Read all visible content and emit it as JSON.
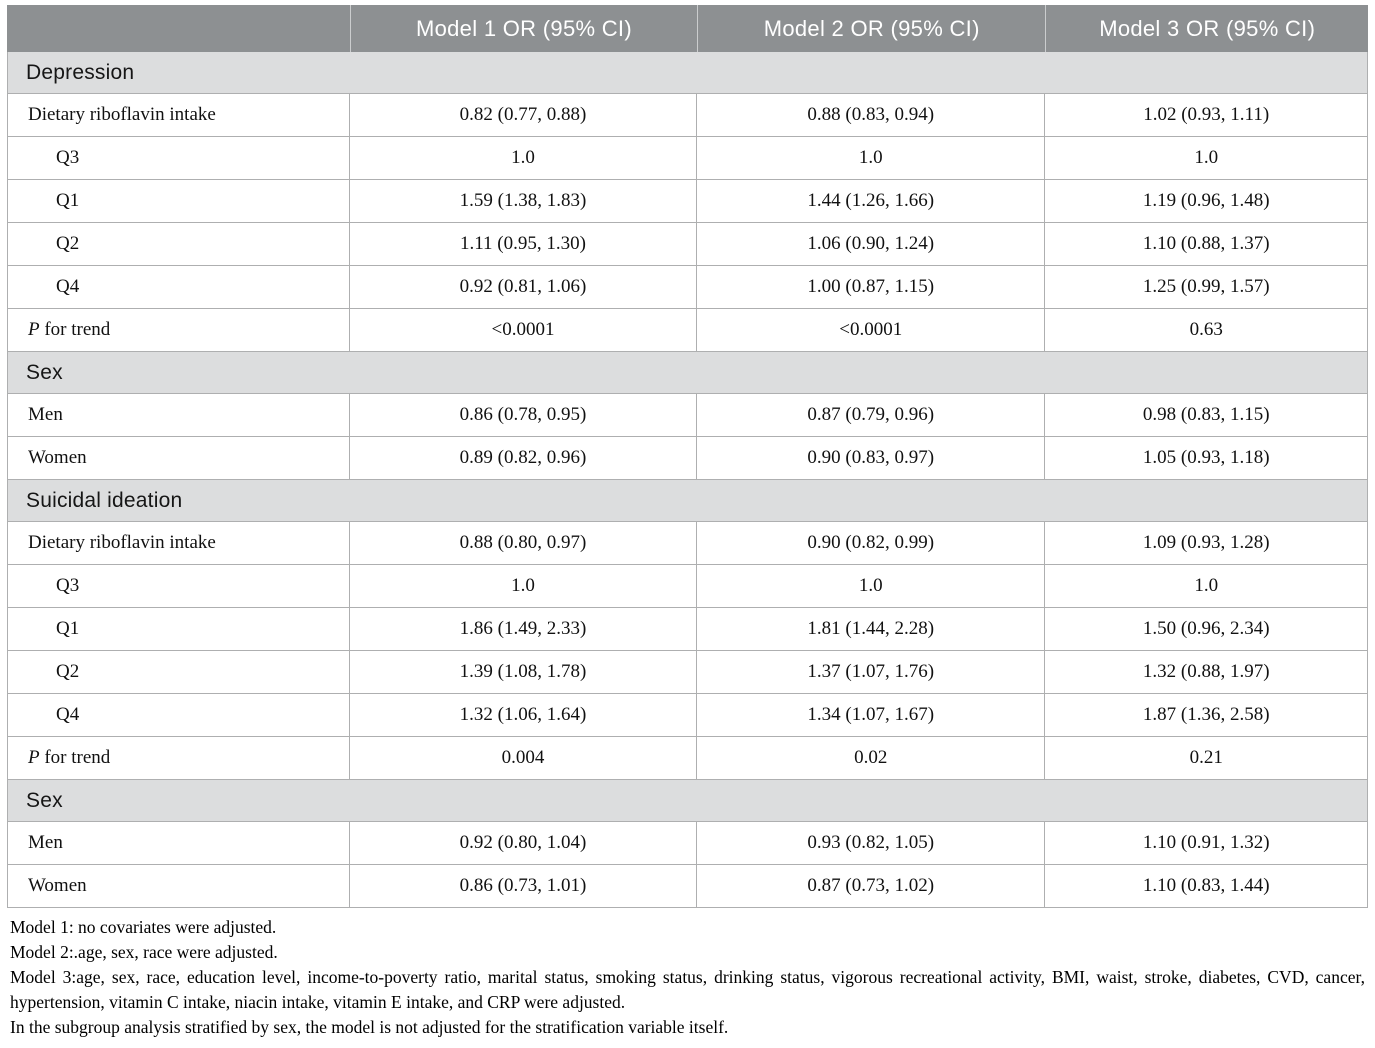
{
  "colors": {
    "header_bg": "#8d9092",
    "header_text": "#ffffff",
    "section_bg": "#dcddde",
    "border": "#aeafb0"
  },
  "table": {
    "columns": [
      "",
      "Model 1 OR (95% CI)",
      "Model 2 OR (95% CI)",
      "Model 3 OR (95% CI)"
    ],
    "sections": [
      {
        "title": "Depression",
        "rows": [
          {
            "label": "Dietary riboflavin intake",
            "values": [
              "0.82 (0.77, 0.88)",
              "0.88 (0.83, 0.94)",
              "1.02 (0.93, 1.11)"
            ]
          },
          {
            "label": "Q3",
            "indent": true,
            "values": [
              "1.0",
              "1.0",
              "1.0"
            ]
          },
          {
            "label": "Q1",
            "indent": true,
            "values": [
              "1.59 (1.38, 1.83)",
              "1.44 (1.26, 1.66)",
              "1.19 (0.96, 1.48)"
            ]
          },
          {
            "label": "Q2",
            "indent": true,
            "values": [
              "1.11 (0.95, 1.30)",
              "1.06 (0.90, 1.24)",
              "1.10 (0.88, 1.37)"
            ]
          },
          {
            "label": "Q4",
            "indent": true,
            "values": [
              "0.92 (0.81, 1.06)",
              "1.00 (0.87, 1.15)",
              "1.25 (0.99, 1.57)"
            ]
          },
          {
            "label_italic": "P",
            "label": " for trend",
            "values": [
              "<0.0001",
              "<0.0001",
              "0.63"
            ]
          }
        ]
      },
      {
        "title": "Sex",
        "rows": [
          {
            "label": "Men",
            "values": [
              "0.86 (0.78, 0.95)",
              "0.87 (0.79, 0.96)",
              "0.98 (0.83, 1.15)"
            ]
          },
          {
            "label": "Women",
            "values": [
              "0.89 (0.82, 0.96)",
              "0.90 (0.83, 0.97)",
              "1.05 (0.93, 1.18)"
            ]
          }
        ]
      },
      {
        "title": "Suicidal ideation",
        "rows": [
          {
            "label": "Dietary riboflavin intake",
            "values": [
              "0.88 (0.80, 0.97)",
              "0.90 (0.82, 0.99)",
              "1.09 (0.93, 1.28)"
            ]
          },
          {
            "label": "Q3",
            "indent": true,
            "values": [
              "1.0",
              "1.0",
              "1.0"
            ]
          },
          {
            "label": "Q1",
            "indent": true,
            "values": [
              "1.86 (1.49, 2.33)",
              "1.81 (1.44, 2.28)",
              "1.50 (0.96, 2.34)"
            ]
          },
          {
            "label": "Q2",
            "indent": true,
            "values": [
              "1.39 (1.08, 1.78)",
              "1.37 (1.07, 1.76)",
              "1.32 (0.88, 1.97)"
            ]
          },
          {
            "label": "Q4",
            "indent": true,
            "values": [
              "1.32 (1.06, 1.64)",
              "1.34 (1.07, 1.67)",
              "1.87 (1.36, 2.58)"
            ]
          },
          {
            "label_italic": "P",
            "label": " for trend",
            "values": [
              "0.004",
              "0.02",
              "0.21"
            ]
          }
        ]
      },
      {
        "title": "Sex",
        "rows": [
          {
            "label": "Men",
            "values": [
              "0.92 (0.80, 1.04)",
              "0.93 (0.82, 1.05)",
              "1.10 (0.91, 1.32)"
            ]
          },
          {
            "label": "Women",
            "values": [
              "0.86 (0.73, 1.01)",
              "0.87 (0.73, 1.02)",
              "1.10 (0.83, 1.44)"
            ]
          }
        ]
      }
    ]
  },
  "footnotes": [
    {
      "text": "Model 1: no covariates were adjusted."
    },
    {
      "text": "Model 2:.age, sex, race were adjusted."
    },
    {
      "text": "Model 3:age, sex, race, education level, income-to-poverty ratio, marital status, smoking status, drinking status, vigorous recreational activity, BMI, waist, stroke, diabetes, CVD, cancer, hypertension, vitamin C intake, niacin intake, vitamin E intake, and CRP were adjusted.",
      "justify": true
    },
    {
      "text": "In the subgroup analysis stratified by sex, the model is not adjusted for the stratification variable itself."
    }
  ]
}
